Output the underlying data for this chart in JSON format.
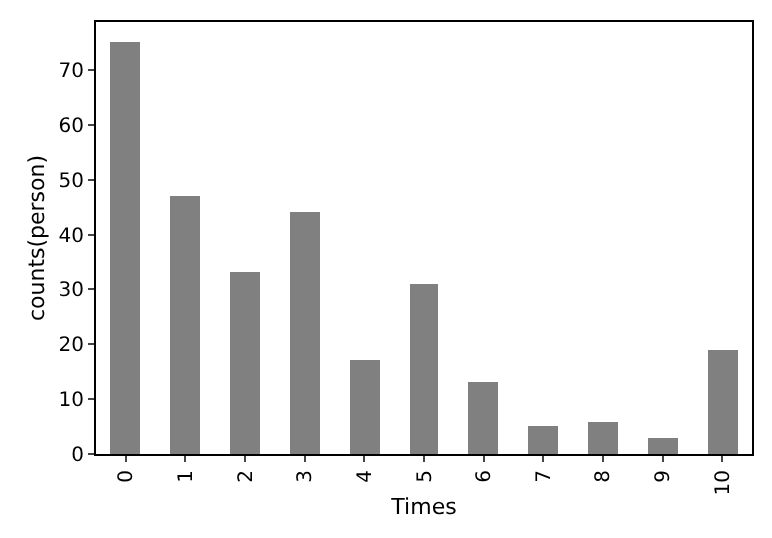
{
  "chart_data": {
    "type": "bar",
    "xlabel": "Times",
    "ylabel": "counts(person)",
    "categories": [
      "0",
      "1",
      "2",
      "3",
      "4",
      "5",
      "6",
      "7",
      "8",
      "9",
      "10"
    ],
    "values": [
      75,
      47,
      33,
      44,
      17,
      31,
      13,
      5,
      6,
      3,
      19
    ],
    "color": "#808080",
    "ylim": [
      0,
      78.75
    ],
    "yticks": [
      0,
      10,
      20,
      30,
      40,
      50,
      60,
      70
    ]
  }
}
